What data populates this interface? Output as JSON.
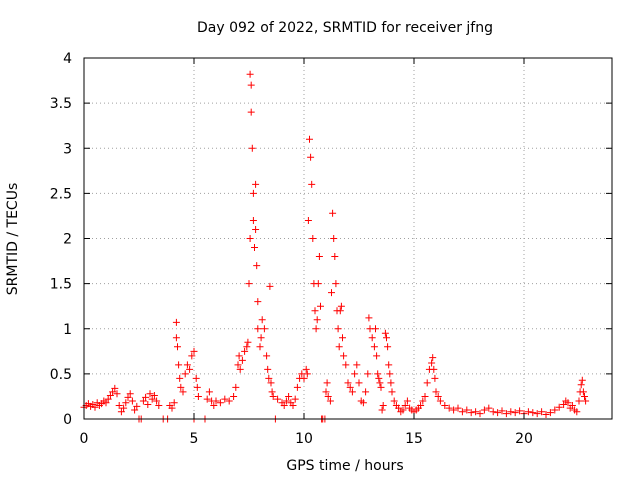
{
  "chart_data": {
    "type": "scatter",
    "title": "Day 092 of 2022, SRMTID for receiver jfng",
    "xlabel": "GPS time / hours",
    "ylabel": "SRMTID / TECUs",
    "xlim": [
      0,
      24
    ],
    "ylim": [
      0,
      4
    ],
    "xticks": [
      0,
      5,
      10,
      15,
      20
    ],
    "xtick_labels": [
      "0",
      "5",
      "10",
      "15",
      "20"
    ],
    "yticks": [
      0,
      0.5,
      1,
      1.5,
      2,
      2.5,
      3,
      3.5,
      4
    ],
    "ytick_labels": [
      "0",
      "0.5",
      "1",
      "1.5",
      "2",
      "2.5",
      "3",
      "3.5",
      "4"
    ],
    "grid": true,
    "marker": "+",
    "color": "#ff0000",
    "series": [
      {
        "name": "SRMTID",
        "points": [
          [
            0.0,
            0.13
          ],
          [
            0.1,
            0.15
          ],
          [
            0.2,
            0.17
          ],
          [
            0.3,
            0.14
          ],
          [
            0.4,
            0.16
          ],
          [
            0.5,
            0.13
          ],
          [
            0.6,
            0.18
          ],
          [
            0.7,
            0.15
          ],
          [
            0.8,
            0.17
          ],
          [
            0.9,
            0.2
          ],
          [
            1.0,
            0.18
          ],
          [
            1.1,
            0.22
          ],
          [
            1.2,
            0.26
          ],
          [
            1.3,
            0.3
          ],
          [
            1.4,
            0.34
          ],
          [
            1.5,
            0.28
          ],
          [
            1.6,
            0.15
          ],
          [
            1.7,
            0.08
          ],
          [
            1.8,
            0.12
          ],
          [
            1.9,
            0.18
          ],
          [
            2.0,
            0.24
          ],
          [
            2.1,
            0.28
          ],
          [
            2.2,
            0.2
          ],
          [
            2.3,
            0.1
          ],
          [
            2.4,
            0.14
          ],
          [
            2.5,
            0.0
          ],
          [
            2.6,
            0.0
          ],
          [
            2.7,
            0.2
          ],
          [
            2.8,
            0.24
          ],
          [
            2.9,
            0.16
          ],
          [
            3.0,
            0.28
          ],
          [
            3.1,
            0.22
          ],
          [
            3.2,
            0.26
          ],
          [
            3.3,
            0.2
          ],
          [
            3.4,
            0.15
          ],
          [
            3.6,
            0.0
          ],
          [
            3.8,
            0.0
          ],
          [
            3.9,
            0.15
          ],
          [
            4.0,
            0.12
          ],
          [
            4.1,
            0.18
          ],
          [
            4.2,
            1.07
          ],
          [
            4.2,
            0.9
          ],
          [
            4.25,
            0.8
          ],
          [
            4.3,
            0.6
          ],
          [
            4.35,
            0.45
          ],
          [
            4.4,
            0.35
          ],
          [
            4.5,
            0.3
          ],
          [
            4.6,
            0.5
          ],
          [
            4.7,
            0.6
          ],
          [
            4.8,
            0.55
          ],
          [
            4.9,
            0.7
          ],
          [
            5.0,
            0.75
          ],
          [
            5.0,
            0.0
          ],
          [
            5.1,
            0.45
          ],
          [
            5.15,
            0.35
          ],
          [
            5.2,
            0.25
          ],
          [
            5.5,
            0.0
          ],
          [
            5.6,
            0.22
          ],
          [
            5.7,
            0.3
          ],
          [
            5.8,
            0.2
          ],
          [
            5.9,
            0.15
          ],
          [
            6.0,
            0.2
          ],
          [
            6.2,
            0.18
          ],
          [
            6.4,
            0.22
          ],
          [
            6.6,
            0.2
          ],
          [
            6.8,
            0.25
          ],
          [
            6.9,
            0.35
          ],
          [
            7.0,
            0.6
          ],
          [
            7.05,
            0.7
          ],
          [
            7.1,
            0.55
          ],
          [
            7.2,
            0.65
          ],
          [
            7.3,
            0.75
          ],
          [
            7.4,
            0.8
          ],
          [
            7.45,
            0.85
          ],
          [
            7.5,
            1.5
          ],
          [
            7.55,
            2.0
          ],
          [
            7.55,
            3.82
          ],
          [
            7.6,
            3.7
          ],
          [
            7.6,
            3.4
          ],
          [
            7.65,
            3.0
          ],
          [
            7.7,
            2.5
          ],
          [
            7.7,
            2.2
          ],
          [
            7.75,
            1.9
          ],
          [
            7.8,
            2.6
          ],
          [
            7.8,
            2.1
          ],
          [
            7.85,
            1.7
          ],
          [
            7.9,
            1.3
          ],
          [
            7.9,
            1.0
          ],
          [
            8.0,
            0.8
          ],
          [
            8.05,
            0.9
          ],
          [
            8.1,
            1.1
          ],
          [
            8.2,
            1.0
          ],
          [
            8.3,
            0.7
          ],
          [
            8.35,
            0.55
          ],
          [
            8.4,
            0.45
          ],
          [
            8.45,
            1.47
          ],
          [
            8.5,
            0.4
          ],
          [
            8.55,
            0.3
          ],
          [
            8.6,
            0.25
          ],
          [
            8.7,
            0.0
          ],
          [
            8.8,
            0.22
          ],
          [
            9.0,
            0.18
          ],
          [
            9.1,
            0.15
          ],
          [
            9.2,
            0.2
          ],
          [
            9.3,
            0.25
          ],
          [
            9.4,
            0.18
          ],
          [
            9.5,
            0.15
          ],
          [
            9.6,
            0.22
          ],
          [
            9.7,
            0.35
          ],
          [
            9.8,
            0.45
          ],
          [
            9.9,
            0.5
          ],
          [
            10.0,
            0.45
          ],
          [
            10.1,
            0.55
          ],
          [
            10.15,
            0.5
          ],
          [
            10.2,
            2.2
          ],
          [
            10.25,
            3.1
          ],
          [
            10.3,
            2.9
          ],
          [
            10.35,
            2.6
          ],
          [
            10.4,
            2.0
          ],
          [
            10.45,
            1.5
          ],
          [
            10.5,
            1.2
          ],
          [
            10.55,
            1.0
          ],
          [
            10.6,
            1.1
          ],
          [
            10.65,
            1.5
          ],
          [
            10.7,
            1.8
          ],
          [
            10.75,
            1.25
          ],
          [
            10.8,
            0.0
          ],
          [
            10.85,
            0.0
          ],
          [
            10.95,
            0.0
          ],
          [
            11.0,
            0.3
          ],
          [
            11.05,
            0.4
          ],
          [
            11.1,
            0.25
          ],
          [
            11.2,
            0.2
          ],
          [
            11.25,
            1.4
          ],
          [
            11.3,
            2.28
          ],
          [
            11.35,
            2.0
          ],
          [
            11.4,
            1.8
          ],
          [
            11.45,
            1.5
          ],
          [
            11.5,
            1.2
          ],
          [
            11.55,
            1.0
          ],
          [
            11.6,
            0.8
          ],
          [
            11.65,
            1.2
          ],
          [
            11.7,
            1.25
          ],
          [
            11.75,
            0.9
          ],
          [
            11.8,
            0.7
          ],
          [
            11.9,
            0.6
          ],
          [
            12.0,
            0.4
          ],
          [
            12.1,
            0.35
          ],
          [
            12.2,
            0.3
          ],
          [
            12.3,
            0.5
          ],
          [
            12.4,
            0.6
          ],
          [
            12.5,
            0.4
          ],
          [
            12.6,
            0.2
          ],
          [
            12.7,
            0.18
          ],
          [
            12.8,
            0.3
          ],
          [
            12.9,
            0.5
          ],
          [
            12.95,
            1.12
          ],
          [
            13.0,
            1.0
          ],
          [
            13.1,
            0.9
          ],
          [
            13.2,
            0.8
          ],
          [
            13.25,
            1.0
          ],
          [
            13.3,
            0.7
          ],
          [
            13.35,
            0.5
          ],
          [
            13.4,
            0.45
          ],
          [
            13.45,
            0.4
          ],
          [
            13.5,
            0.35
          ],
          [
            13.55,
            0.1
          ],
          [
            13.6,
            0.15
          ],
          [
            13.7,
            0.95
          ],
          [
            13.75,
            0.9
          ],
          [
            13.8,
            0.8
          ],
          [
            13.85,
            0.6
          ],
          [
            13.9,
            0.5
          ],
          [
            13.95,
            0.4
          ],
          [
            14.0,
            0.3
          ],
          [
            14.1,
            0.2
          ],
          [
            14.2,
            0.15
          ],
          [
            14.3,
            0.12
          ],
          [
            14.4,
            0.08
          ],
          [
            14.5,
            0.1
          ],
          [
            14.6,
            0.15
          ],
          [
            14.7,
            0.2
          ],
          [
            14.8,
            0.12
          ],
          [
            14.9,
            0.1
          ],
          [
            15.0,
            0.08
          ],
          [
            15.1,
            0.1
          ],
          [
            15.2,
            0.12
          ],
          [
            15.3,
            0.15
          ],
          [
            15.4,
            0.2
          ],
          [
            15.5,
            0.25
          ],
          [
            15.6,
            0.4
          ],
          [
            15.7,
            0.55
          ],
          [
            15.8,
            0.62
          ],
          [
            15.85,
            0.68
          ],
          [
            15.9,
            0.55
          ],
          [
            15.95,
            0.45
          ],
          [
            16.0,
            0.3
          ],
          [
            16.1,
            0.25
          ],
          [
            16.2,
            0.2
          ],
          [
            16.4,
            0.15
          ],
          [
            16.6,
            0.12
          ],
          [
            16.8,
            0.1
          ],
          [
            17.0,
            0.12
          ],
          [
            17.2,
            0.08
          ],
          [
            17.4,
            0.1
          ],
          [
            17.6,
            0.07
          ],
          [
            17.8,
            0.08
          ],
          [
            18.0,
            0.06
          ],
          [
            18.2,
            0.1
          ],
          [
            18.4,
            0.12
          ],
          [
            18.6,
            0.08
          ],
          [
            18.8,
            0.07
          ],
          [
            19.0,
            0.09
          ],
          [
            19.2,
            0.06
          ],
          [
            19.4,
            0.08
          ],
          [
            19.6,
            0.07
          ],
          [
            19.8,
            0.09
          ],
          [
            20.0,
            0.06
          ],
          [
            20.2,
            0.08
          ],
          [
            20.4,
            0.07
          ],
          [
            20.6,
            0.06
          ],
          [
            20.8,
            0.08
          ],
          [
            21.0,
            0.05
          ],
          [
            21.2,
            0.07
          ],
          [
            21.4,
            0.1
          ],
          [
            21.6,
            0.13
          ],
          [
            21.8,
            0.16
          ],
          [
            21.9,
            0.2
          ],
          [
            22.0,
            0.18
          ],
          [
            22.1,
            0.12
          ],
          [
            22.2,
            0.15
          ],
          [
            22.3,
            0.1
          ],
          [
            22.4,
            0.08
          ],
          [
            22.5,
            0.2
          ],
          [
            22.55,
            0.3
          ],
          [
            22.6,
            0.38
          ],
          [
            22.65,
            0.43
          ],
          [
            22.7,
            0.3
          ],
          [
            22.75,
            0.25
          ],
          [
            22.8,
            0.2
          ]
        ]
      }
    ]
  }
}
